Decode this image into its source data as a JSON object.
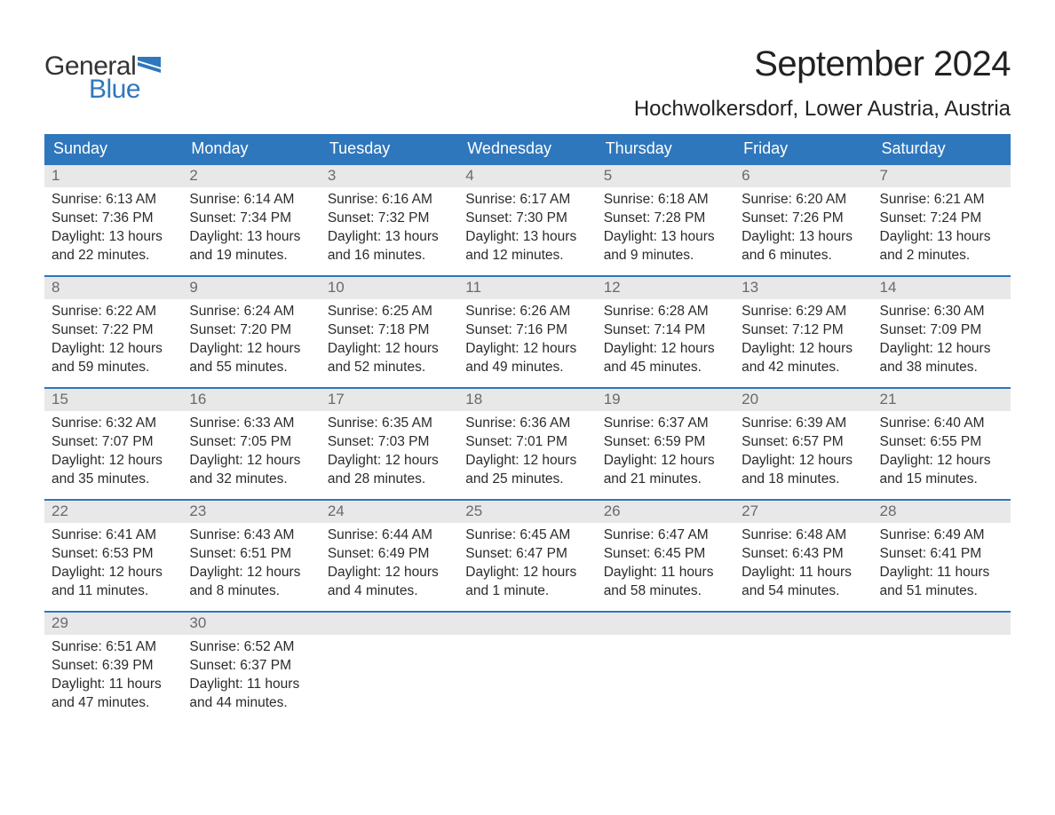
{
  "logo": {
    "word1": "General",
    "word2": "Blue",
    "flag_color": "#2f77bc",
    "text_color": "#333333"
  },
  "title": {
    "month_year": "September 2024",
    "location": "Hochwolkersdorf, Lower Austria, Austria"
  },
  "header_bg": "#2f77bc",
  "header_fg": "#ffffff",
  "strip_bg": "#e8e8e8",
  "strip_fg": "#6a6a6a",
  "week_border": "#2f77bc",
  "body_text_color": "#2b2b2b",
  "day_headers": [
    "Sunday",
    "Monday",
    "Tuesday",
    "Wednesday",
    "Thursday",
    "Friday",
    "Saturday"
  ],
  "weeks": [
    [
      {
        "n": "1",
        "sunrise": "Sunrise: 6:13 AM",
        "sunset": "Sunset: 7:36 PM",
        "d1": "Daylight: 13 hours",
        "d2": "and 22 minutes."
      },
      {
        "n": "2",
        "sunrise": "Sunrise: 6:14 AM",
        "sunset": "Sunset: 7:34 PM",
        "d1": "Daylight: 13 hours",
        "d2": "and 19 minutes."
      },
      {
        "n": "3",
        "sunrise": "Sunrise: 6:16 AM",
        "sunset": "Sunset: 7:32 PM",
        "d1": "Daylight: 13 hours",
        "d2": "and 16 minutes."
      },
      {
        "n": "4",
        "sunrise": "Sunrise: 6:17 AM",
        "sunset": "Sunset: 7:30 PM",
        "d1": "Daylight: 13 hours",
        "d2": "and 12 minutes."
      },
      {
        "n": "5",
        "sunrise": "Sunrise: 6:18 AM",
        "sunset": "Sunset: 7:28 PM",
        "d1": "Daylight: 13 hours",
        "d2": "and 9 minutes."
      },
      {
        "n": "6",
        "sunrise": "Sunrise: 6:20 AM",
        "sunset": "Sunset: 7:26 PM",
        "d1": "Daylight: 13 hours",
        "d2": "and 6 minutes."
      },
      {
        "n": "7",
        "sunrise": "Sunrise: 6:21 AM",
        "sunset": "Sunset: 7:24 PM",
        "d1": "Daylight: 13 hours",
        "d2": "and 2 minutes."
      }
    ],
    [
      {
        "n": "8",
        "sunrise": "Sunrise: 6:22 AM",
        "sunset": "Sunset: 7:22 PM",
        "d1": "Daylight: 12 hours",
        "d2": "and 59 minutes."
      },
      {
        "n": "9",
        "sunrise": "Sunrise: 6:24 AM",
        "sunset": "Sunset: 7:20 PM",
        "d1": "Daylight: 12 hours",
        "d2": "and 55 minutes."
      },
      {
        "n": "10",
        "sunrise": "Sunrise: 6:25 AM",
        "sunset": "Sunset: 7:18 PM",
        "d1": "Daylight: 12 hours",
        "d2": "and 52 minutes."
      },
      {
        "n": "11",
        "sunrise": "Sunrise: 6:26 AM",
        "sunset": "Sunset: 7:16 PM",
        "d1": "Daylight: 12 hours",
        "d2": "and 49 minutes."
      },
      {
        "n": "12",
        "sunrise": "Sunrise: 6:28 AM",
        "sunset": "Sunset: 7:14 PM",
        "d1": "Daylight: 12 hours",
        "d2": "and 45 minutes."
      },
      {
        "n": "13",
        "sunrise": "Sunrise: 6:29 AM",
        "sunset": "Sunset: 7:12 PM",
        "d1": "Daylight: 12 hours",
        "d2": "and 42 minutes."
      },
      {
        "n": "14",
        "sunrise": "Sunrise: 6:30 AM",
        "sunset": "Sunset: 7:09 PM",
        "d1": "Daylight: 12 hours",
        "d2": "and 38 minutes."
      }
    ],
    [
      {
        "n": "15",
        "sunrise": "Sunrise: 6:32 AM",
        "sunset": "Sunset: 7:07 PM",
        "d1": "Daylight: 12 hours",
        "d2": "and 35 minutes."
      },
      {
        "n": "16",
        "sunrise": "Sunrise: 6:33 AM",
        "sunset": "Sunset: 7:05 PM",
        "d1": "Daylight: 12 hours",
        "d2": "and 32 minutes."
      },
      {
        "n": "17",
        "sunrise": "Sunrise: 6:35 AM",
        "sunset": "Sunset: 7:03 PM",
        "d1": "Daylight: 12 hours",
        "d2": "and 28 minutes."
      },
      {
        "n": "18",
        "sunrise": "Sunrise: 6:36 AM",
        "sunset": "Sunset: 7:01 PM",
        "d1": "Daylight: 12 hours",
        "d2": "and 25 minutes."
      },
      {
        "n": "19",
        "sunrise": "Sunrise: 6:37 AM",
        "sunset": "Sunset: 6:59 PM",
        "d1": "Daylight: 12 hours",
        "d2": "and 21 minutes."
      },
      {
        "n": "20",
        "sunrise": "Sunrise: 6:39 AM",
        "sunset": "Sunset: 6:57 PM",
        "d1": "Daylight: 12 hours",
        "d2": "and 18 minutes."
      },
      {
        "n": "21",
        "sunrise": "Sunrise: 6:40 AM",
        "sunset": "Sunset: 6:55 PM",
        "d1": "Daylight: 12 hours",
        "d2": "and 15 minutes."
      }
    ],
    [
      {
        "n": "22",
        "sunrise": "Sunrise: 6:41 AM",
        "sunset": "Sunset: 6:53 PM",
        "d1": "Daylight: 12 hours",
        "d2": "and 11 minutes."
      },
      {
        "n": "23",
        "sunrise": "Sunrise: 6:43 AM",
        "sunset": "Sunset: 6:51 PM",
        "d1": "Daylight: 12 hours",
        "d2": "and 8 minutes."
      },
      {
        "n": "24",
        "sunrise": "Sunrise: 6:44 AM",
        "sunset": "Sunset: 6:49 PM",
        "d1": "Daylight: 12 hours",
        "d2": "and 4 minutes."
      },
      {
        "n": "25",
        "sunrise": "Sunrise: 6:45 AM",
        "sunset": "Sunset: 6:47 PM",
        "d1": "Daylight: 12 hours",
        "d2": "and 1 minute."
      },
      {
        "n": "26",
        "sunrise": "Sunrise: 6:47 AM",
        "sunset": "Sunset: 6:45 PM",
        "d1": "Daylight: 11 hours",
        "d2": "and 58 minutes."
      },
      {
        "n": "27",
        "sunrise": "Sunrise: 6:48 AM",
        "sunset": "Sunset: 6:43 PM",
        "d1": "Daylight: 11 hours",
        "d2": "and 54 minutes."
      },
      {
        "n": "28",
        "sunrise": "Sunrise: 6:49 AM",
        "sunset": "Sunset: 6:41 PM",
        "d1": "Daylight: 11 hours",
        "d2": "and 51 minutes."
      }
    ],
    [
      {
        "n": "29",
        "sunrise": "Sunrise: 6:51 AM",
        "sunset": "Sunset: 6:39 PM",
        "d1": "Daylight: 11 hours",
        "d2": "and 47 minutes."
      },
      {
        "n": "30",
        "sunrise": "Sunrise: 6:52 AM",
        "sunset": "Sunset: 6:37 PM",
        "d1": "Daylight: 11 hours",
        "d2": "and 44 minutes."
      },
      {
        "empty": true
      },
      {
        "empty": true
      },
      {
        "empty": true
      },
      {
        "empty": true
      },
      {
        "empty": true
      }
    ]
  ]
}
